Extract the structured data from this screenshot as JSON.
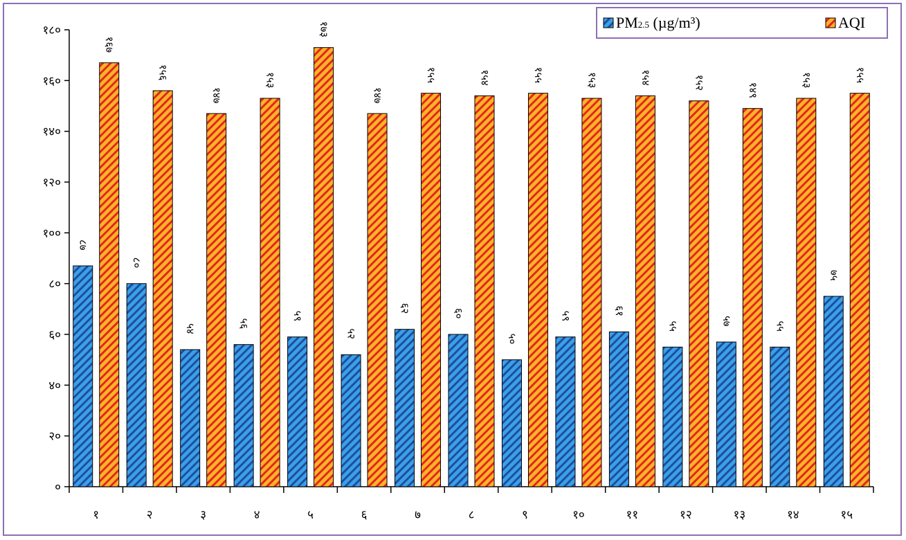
{
  "chart_data": {
    "type": "bar",
    "categories": [
      "१",
      "२",
      "३",
      "४",
      "५",
      "६",
      "७",
      "८",
      "९",
      "१०",
      "११",
      "१२",
      "१३",
      "१४",
      "१५"
    ],
    "series": [
      {
        "name": "PM2.5 (µg/m³)",
        "color": "#3aa0e8",
        "values": [
          87,
          80,
          54,
          56,
          59,
          52,
          62,
          60,
          50,
          59,
          61,
          55,
          57,
          55,
          75
        ],
        "labels": [
          "८७",
          "८०",
          "५४",
          "५६",
          "५९",
          "५२",
          "६२",
          "६०",
          "५०",
          "५९",
          "६१",
          "५५",
          "५७",
          "५५",
          "७५"
        ]
      },
      {
        "name": "AQI",
        "color": "#ff9b1a",
        "values": [
          167,
          156,
          147,
          153,
          173,
          147,
          155,
          154,
          155,
          153,
          154,
          152,
          149,
          153,
          155
        ],
        "labels": [
          "१६७",
          "१५६",
          "१४७",
          "१५३",
          "१७३",
          "१४७",
          "१५५",
          "१५४",
          "१५५",
          "१५३",
          "१५४",
          "१५२",
          "१४९",
          "१५३",
          "१५५"
        ]
      }
    ],
    "ylim": [
      0,
      180
    ],
    "yticks": [
      0,
      20,
      40,
      60,
      80,
      100,
      120,
      140,
      160,
      180
    ],
    "ytick_labels": [
      "०",
      "२०",
      "४०",
      "६०",
      "८०",
      "१००",
      "१२०",
      "१४०",
      "१६०",
      "१८०"
    ],
    "legend": {
      "placement": "top-right",
      "pm_main": "PM",
      "pm_sub": "2.5",
      "pm_unit": " (µg/m³)",
      "aqi": "AQI"
    },
    "grid": false
  }
}
